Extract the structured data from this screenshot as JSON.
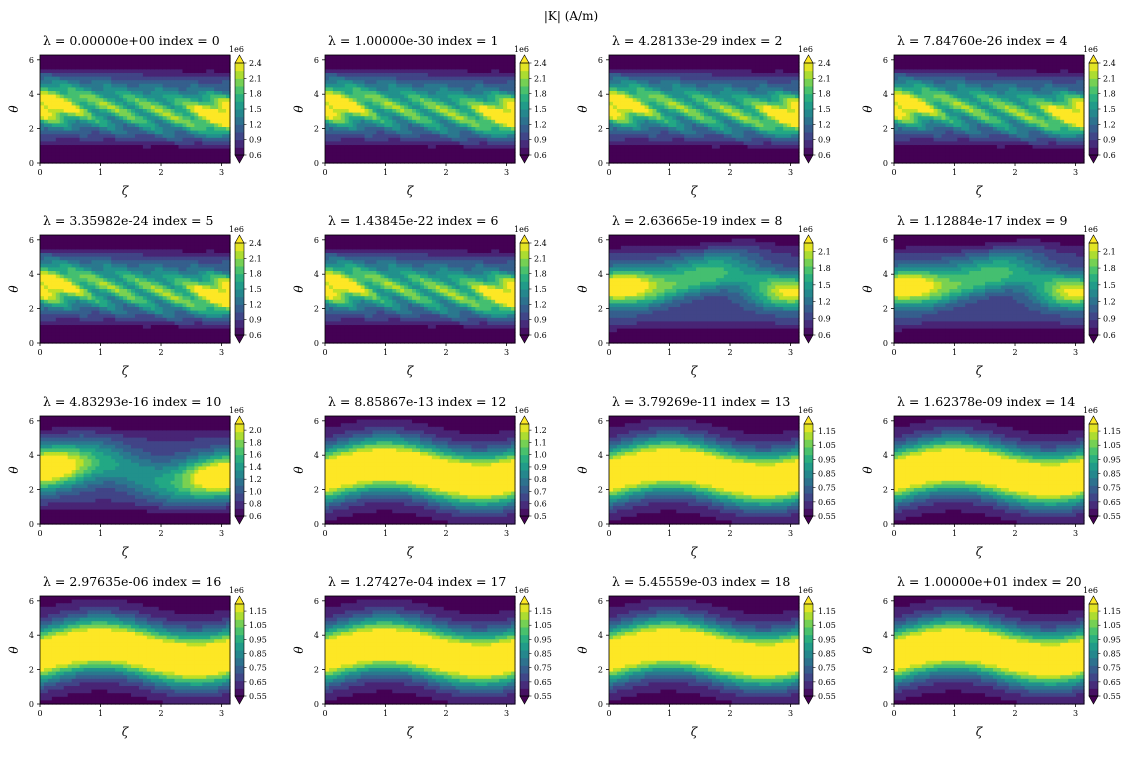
{
  "figure": {
    "title": "|K| (A/m)",
    "cmap_stops": [
      "#440154",
      "#482475",
      "#414487",
      "#355f8d",
      "#2a788e",
      "#21918c",
      "#22a884",
      "#44bf70",
      "#7ad151",
      "#bddf26",
      "#fde725"
    ]
  },
  "chart_data": [
    {
      "type": "heatmap",
      "title": "λ = 0.00000e+00 index = 0",
      "xlabel": "ζ",
      "ylabel": "θ",
      "xlim": [
        0,
        3.14
      ],
      "ylim": [
        0,
        6.28
      ],
      "x_ticks": [
        "0",
        "1",
        "2",
        "3"
      ],
      "y_ticks": [
        "0",
        "2",
        "4",
        "6"
      ],
      "colorbar": {
        "offset": "1e6",
        "ticks": [
          "0.6",
          "0.9",
          "1.2",
          "1.5",
          "1.8",
          "2.1",
          "2.4"
        ],
        "range": [
          0.6,
          2.4
        ],
        "extend": "both"
      },
      "pattern": "low"
    },
    {
      "type": "heatmap",
      "title": "λ = 1.00000e-30 index = 1",
      "xlabel": "ζ",
      "ylabel": "θ",
      "xlim": [
        0,
        3.14
      ],
      "ylim": [
        0,
        6.28
      ],
      "x_ticks": [
        "0",
        "1",
        "2",
        "3"
      ],
      "y_ticks": [
        "0",
        "2",
        "4",
        "6"
      ],
      "colorbar": {
        "offset": "1e6",
        "ticks": [
          "0.6",
          "0.9",
          "1.2",
          "1.5",
          "1.8",
          "2.1",
          "2.4"
        ],
        "range": [
          0.6,
          2.4
        ],
        "extend": "both"
      },
      "pattern": "low"
    },
    {
      "type": "heatmap",
      "title": "λ = 4.28133e-29 index = 2",
      "xlabel": "ζ",
      "ylabel": "θ",
      "xlim": [
        0,
        3.14
      ],
      "ylim": [
        0,
        6.28
      ],
      "x_ticks": [
        "0",
        "1",
        "2",
        "3"
      ],
      "y_ticks": [
        "0",
        "2",
        "4",
        "6"
      ],
      "colorbar": {
        "offset": "1e6",
        "ticks": [
          "0.6",
          "0.9",
          "1.2",
          "1.5",
          "1.8",
          "2.1",
          "2.4"
        ],
        "range": [
          0.6,
          2.4
        ],
        "extend": "both"
      },
      "pattern": "low"
    },
    {
      "type": "heatmap",
      "title": "λ = 7.84760e-26 index = 4",
      "xlabel": "ζ",
      "ylabel": "θ",
      "xlim": [
        0,
        3.14
      ],
      "ylim": [
        0,
        6.28
      ],
      "x_ticks": [
        "0",
        "1",
        "2",
        "3"
      ],
      "y_ticks": [
        "0",
        "2",
        "4",
        "6"
      ],
      "colorbar": {
        "offset": "1e6",
        "ticks": [
          "0.6",
          "0.9",
          "1.2",
          "1.5",
          "1.8",
          "2.1",
          "2.4"
        ],
        "range": [
          0.6,
          2.4
        ],
        "extend": "both"
      },
      "pattern": "low"
    },
    {
      "type": "heatmap",
      "title": "λ = 3.35982e-24 index = 5",
      "xlabel": "ζ",
      "ylabel": "θ",
      "xlim": [
        0,
        3.14
      ],
      "ylim": [
        0,
        6.28
      ],
      "x_ticks": [
        "0",
        "1",
        "2",
        "3"
      ],
      "y_ticks": [
        "0",
        "2",
        "4",
        "6"
      ],
      "colorbar": {
        "offset": "1e6",
        "ticks": [
          "0.6",
          "0.9",
          "1.2",
          "1.5",
          "1.8",
          "2.1",
          "2.4"
        ],
        "range": [
          0.6,
          2.4
        ],
        "extend": "both"
      },
      "pattern": "low"
    },
    {
      "type": "heatmap",
      "title": "λ = 1.43845e-22 index = 6",
      "xlabel": "ζ",
      "ylabel": "θ",
      "xlim": [
        0,
        3.14
      ],
      "ylim": [
        0,
        6.28
      ],
      "x_ticks": [
        "0",
        "1",
        "2",
        "3"
      ],
      "y_ticks": [
        "0",
        "2",
        "4",
        "6"
      ],
      "colorbar": {
        "offset": "1e6",
        "ticks": [
          "0.6",
          "0.9",
          "1.2",
          "1.5",
          "1.8",
          "2.1",
          "2.4"
        ],
        "range": [
          0.6,
          2.4
        ],
        "extend": "both"
      },
      "pattern": "low"
    },
    {
      "type": "heatmap",
      "title": "λ = 2.63665e-19 index = 8",
      "xlabel": "ζ",
      "ylabel": "θ",
      "xlim": [
        0,
        3.14
      ],
      "ylim": [
        0,
        6.28
      ],
      "x_ticks": [
        "0",
        "1",
        "2",
        "3"
      ],
      "y_ticks": [
        "0",
        "2",
        "4",
        "6"
      ],
      "colorbar": {
        "offset": "1e6",
        "ticks": [
          "0.6",
          "0.9",
          "1.2",
          "1.5",
          "1.8",
          "2.1"
        ],
        "range": [
          0.6,
          2.25
        ],
        "extend": "both"
      },
      "pattern": "mid"
    },
    {
      "type": "heatmap",
      "title": "λ = 1.12884e-17 index = 9",
      "xlabel": "ζ",
      "ylabel": "θ",
      "xlim": [
        0,
        3.14
      ],
      "ylim": [
        0,
        6.28
      ],
      "x_ticks": [
        "0",
        "1",
        "2",
        "3"
      ],
      "y_ticks": [
        "0",
        "2",
        "4",
        "6"
      ],
      "colorbar": {
        "offset": "1e6",
        "ticks": [
          "0.6",
          "0.9",
          "1.2",
          "1.5",
          "1.8",
          "2.1"
        ],
        "range": [
          0.6,
          2.25
        ],
        "extend": "both"
      },
      "pattern": "mid"
    },
    {
      "type": "heatmap",
      "title": "λ = 4.83293e-16 index = 10",
      "xlabel": "ζ",
      "ylabel": "θ",
      "xlim": [
        0,
        3.14
      ],
      "ylim": [
        0,
        6.28
      ],
      "x_ticks": [
        "0",
        "1",
        "2",
        "3"
      ],
      "y_ticks": [
        "0",
        "2",
        "4",
        "6"
      ],
      "colorbar": {
        "offset": "1e6",
        "ticks": [
          "0.6",
          "0.8",
          "1.0",
          "1.2",
          "1.4",
          "1.6",
          "1.8",
          "2.0"
        ],
        "range": [
          0.6,
          2.1
        ],
        "extend": "both"
      },
      "pattern": "mid2"
    },
    {
      "type": "heatmap",
      "title": "λ = 8.85867e-13 index = 12",
      "xlabel": "ζ",
      "ylabel": "θ",
      "xlim": [
        0,
        3.14
      ],
      "ylim": [
        0,
        6.28
      ],
      "x_ticks": [
        "0",
        "1",
        "2",
        "3"
      ],
      "y_ticks": [
        "0",
        "2",
        "4",
        "6"
      ],
      "colorbar": {
        "offset": "1e6",
        "ticks": [
          "0.5",
          "0.6",
          "0.7",
          "0.8",
          "0.9",
          "1.0",
          "1.1",
          "1.2"
        ],
        "range": [
          0.5,
          1.25
        ],
        "extend": "both"
      },
      "pattern": "high"
    },
    {
      "type": "heatmap",
      "title": "λ = 3.79269e-11 index = 13",
      "xlabel": "ζ",
      "ylabel": "θ",
      "xlim": [
        0,
        3.14
      ],
      "ylim": [
        0,
        6.28
      ],
      "x_ticks": [
        "0",
        "1",
        "2",
        "3"
      ],
      "y_ticks": [
        "0",
        "2",
        "4",
        "6"
      ],
      "colorbar": {
        "offset": "1e6",
        "ticks": [
          "0.55",
          "0.65",
          "0.75",
          "0.85",
          "0.95",
          "1.05",
          "1.15"
        ],
        "range": [
          0.55,
          1.2
        ],
        "extend": "both"
      },
      "pattern": "high"
    },
    {
      "type": "heatmap",
      "title": "λ = 1.62378e-09 index = 14",
      "xlabel": "ζ",
      "ylabel": "θ",
      "xlim": [
        0,
        3.14
      ],
      "ylim": [
        0,
        6.28
      ],
      "x_ticks": [
        "0",
        "1",
        "2",
        "3"
      ],
      "y_ticks": [
        "0",
        "2",
        "4",
        "6"
      ],
      "colorbar": {
        "offset": "1e6",
        "ticks": [
          "0.55",
          "0.65",
          "0.75",
          "0.85",
          "0.95",
          "1.05",
          "1.15"
        ],
        "range": [
          0.55,
          1.2
        ],
        "extend": "both"
      },
      "pattern": "high"
    },
    {
      "type": "heatmap",
      "title": "λ = 2.97635e-06 index = 16",
      "xlabel": "ζ",
      "ylabel": "θ",
      "xlim": [
        0,
        3.14
      ],
      "ylim": [
        0,
        6.28
      ],
      "x_ticks": [
        "0",
        "1",
        "2",
        "3"
      ],
      "y_ticks": [
        "0",
        "2",
        "4",
        "6"
      ],
      "colorbar": {
        "offset": "1e6",
        "ticks": [
          "0.55",
          "0.65",
          "0.75",
          "0.85",
          "0.95",
          "1.05",
          "1.15"
        ],
        "range": [
          0.55,
          1.2
        ],
        "extend": "both"
      },
      "pattern": "high"
    },
    {
      "type": "heatmap",
      "title": "λ = 1.27427e-04 index = 17",
      "xlabel": "ζ",
      "ylabel": "θ",
      "xlim": [
        0,
        3.14
      ],
      "ylim": [
        0,
        6.28
      ],
      "x_ticks": [
        "0",
        "1",
        "2",
        "3"
      ],
      "y_ticks": [
        "0",
        "2",
        "4",
        "6"
      ],
      "colorbar": {
        "offset": "1e6",
        "ticks": [
          "0.55",
          "0.65",
          "0.75",
          "0.85",
          "0.95",
          "1.05",
          "1.15"
        ],
        "range": [
          0.55,
          1.2
        ],
        "extend": "both"
      },
      "pattern": "high"
    },
    {
      "type": "heatmap",
      "title": "λ = 5.45559e-03 index = 18",
      "xlabel": "ζ",
      "ylabel": "θ",
      "xlim": [
        0,
        3.14
      ],
      "ylim": [
        0,
        6.28
      ],
      "x_ticks": [
        "0",
        "1",
        "2",
        "3"
      ],
      "y_ticks": [
        "0",
        "2",
        "4",
        "6"
      ],
      "colorbar": {
        "offset": "1e6",
        "ticks": [
          "0.55",
          "0.65",
          "0.75",
          "0.85",
          "0.95",
          "1.05",
          "1.15"
        ],
        "range": [
          0.55,
          1.2
        ],
        "extend": "both"
      },
      "pattern": "high"
    },
    {
      "type": "heatmap",
      "title": "λ = 1.00000e+01 index = 20",
      "xlabel": "ζ",
      "ylabel": "θ",
      "xlim": [
        0,
        3.14
      ],
      "ylim": [
        0,
        6.28
      ],
      "x_ticks": [
        "0",
        "1",
        "2",
        "3"
      ],
      "y_ticks": [
        "0",
        "2",
        "4",
        "6"
      ],
      "colorbar": {
        "offset": "1e6",
        "ticks": [
          "0.55",
          "0.65",
          "0.75",
          "0.85",
          "0.95",
          "1.05",
          "1.15"
        ],
        "range": [
          0.55,
          1.2
        ],
        "extend": "both"
      },
      "pattern": "high"
    }
  ]
}
